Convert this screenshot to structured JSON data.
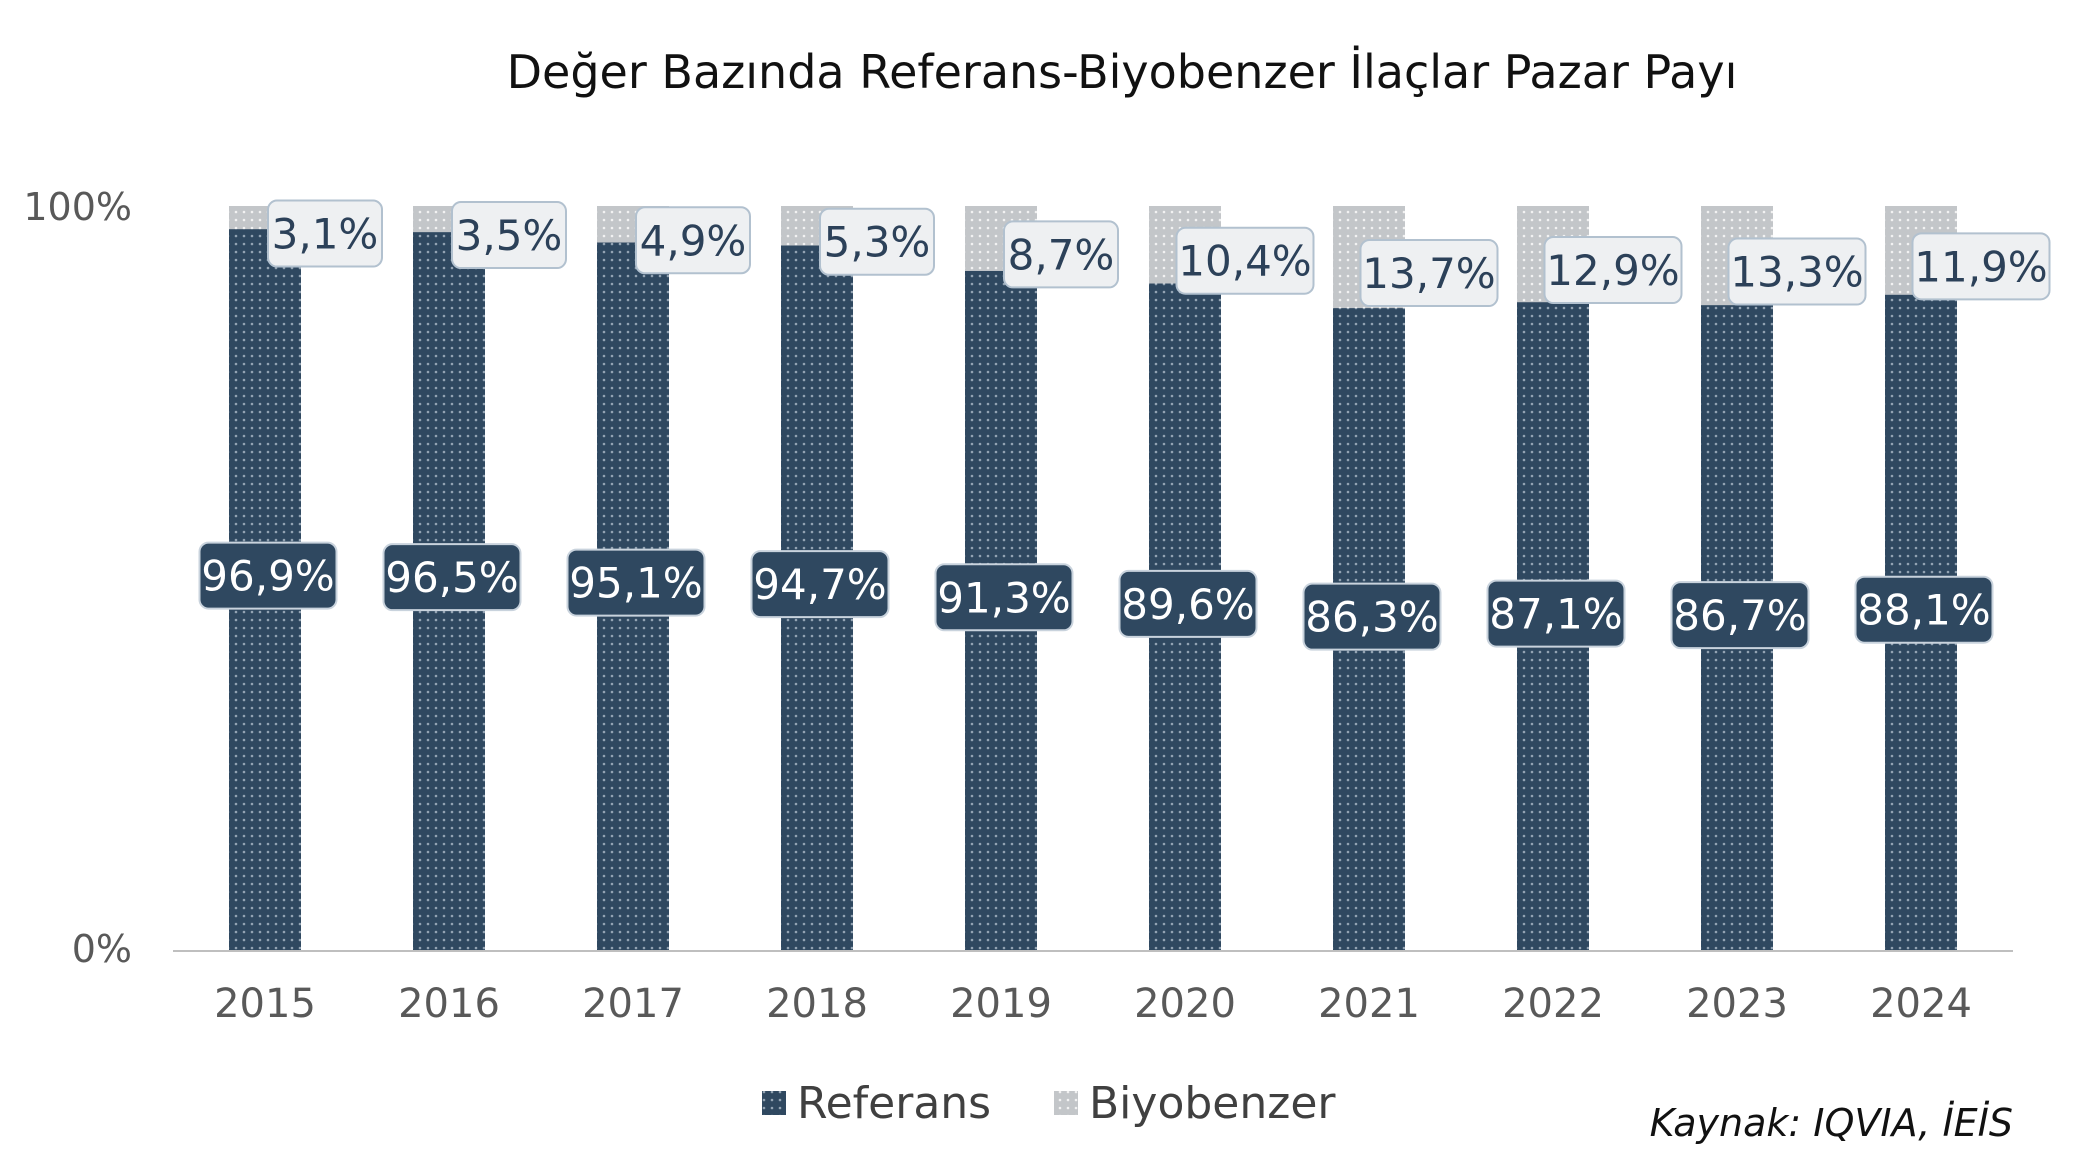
{
  "chart_data": {
    "type": "bar",
    "stacked": true,
    "title": "Değer Bazında Referans-Biyobenzer İlaçlar Pazar Payı",
    "categories": [
      "2015",
      "2016",
      "2017",
      "2018",
      "2019",
      "2020",
      "2021",
      "2022",
      "2023",
      "2024"
    ],
    "series": [
      {
        "name": "Referans",
        "color": "#2f4860",
        "values": [
          96.9,
          96.5,
          95.1,
          94.7,
          91.3,
          89.6,
          86.3,
          87.1,
          86.7,
          88.1
        ],
        "labels": [
          "96,9%",
          "96,5%",
          "95,1%",
          "94,7%",
          "91,3%",
          "89,6%",
          "86,3%",
          "87,1%",
          "86,7%",
          "88,1%"
        ]
      },
      {
        "name": "Biyobenzer",
        "color": "#c3c6c9",
        "values": [
          3.1,
          3.5,
          4.9,
          5.3,
          8.7,
          10.4,
          13.7,
          12.9,
          13.3,
          11.9
        ],
        "labels": [
          "3,1%",
          "3,5%",
          "4,9%",
          "5,3%",
          "8,7%",
          "10,4%",
          "13,7%",
          "12,9%",
          "13,3%",
          "11,9%"
        ]
      }
    ],
    "ylim": [
      0,
      100
    ],
    "y_ticks": [
      "0%",
      "100%"
    ],
    "grid": false,
    "legend": "bottom",
    "source": "Kaynak: IQVIA, İEİS"
  }
}
